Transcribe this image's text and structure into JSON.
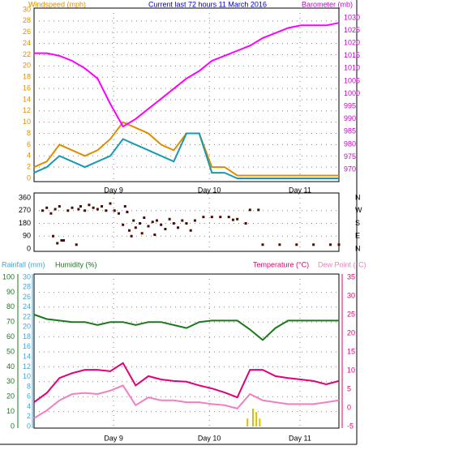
{
  "chart_data": [
    {
      "type": "line",
      "title": "Current last 72 hours 11 March 2016",
      "ylabel": "Windspeed (mph)",
      "y2label": "Barometer (mb)",
      "x": [
        0,
        3,
        6,
        9,
        12,
        15,
        18,
        21,
        24,
        27,
        30,
        33,
        36,
        39,
        42,
        45,
        48,
        51,
        54,
        57,
        60,
        63,
        66,
        69,
        72
      ],
      "xlim": [
        0,
        72
      ],
      "xticks": [
        {
          "value": 18.8,
          "label": "Day 9"
        },
        {
          "value": 41.4,
          "label": "Day 10"
        },
        {
          "value": 62.8,
          "label": "Day 11"
        }
      ],
      "ylim": [
        0,
        30
      ],
      "yticks": [
        0,
        2,
        4,
        6,
        8,
        10,
        12,
        14,
        16,
        18,
        20,
        22,
        24,
        26,
        28,
        30
      ],
      "y2lim": [
        966.5,
        1033.2
      ],
      "y2ticks": [
        970,
        975,
        980,
        985,
        990,
        995,
        1000,
        1005,
        1010,
        1015,
        1020,
        1025,
        1030
      ],
      "grid": true,
      "series": [
        {
          "color": "#e08c00",
          "values": [
            2,
            3,
            6,
            5,
            4,
            5,
            7,
            10,
            9,
            8,
            6,
            5,
            8,
            8,
            2,
            2,
            0.5,
            0.5,
            0.5,
            0.5,
            0.5,
            0.5,
            0.5,
            0.5,
            0.5
          ]
        },
        {
          "color": "#1a9ab0",
          "values": [
            1,
            2,
            4,
            3,
            2,
            3,
            4,
            7,
            6,
            5,
            4,
            3,
            8,
            8,
            1,
            1,
            0,
            0,
            0,
            0,
            0,
            0,
            0,
            0,
            0
          ]
        },
        {
          "color": "#ff00ff",
          "axis": "y2",
          "values": [
            1016,
            1016,
            1015,
            1013,
            1010,
            1006,
            996,
            987,
            990,
            994,
            998,
            1002,
            1006,
            1009,
            1013,
            1015,
            1017,
            1019,
            1022,
            1024,
            1026,
            1027,
            1027,
            1027,
            1028
          ]
        }
      ]
    },
    {
      "type": "scatter",
      "x": [
        2,
        3,
        4,
        4.5,
        5,
        5.5,
        6,
        6.5,
        7,
        8,
        9,
        10,
        10.5,
        11,
        12,
        13,
        14,
        15,
        16,
        17,
        18,
        19,
        20,
        21,
        21.5,
        22,
        22.5,
        23,
        23.5,
        24,
        25,
        25.5,
        26,
        27,
        28,
        28.5,
        29,
        30,
        31,
        32,
        33,
        34,
        35,
        36,
        37,
        38,
        40,
        42,
        44,
        46,
        47,
        48,
        50,
        51,
        53,
        54,
        58,
        62,
        66,
        70,
        72
      ],
      "values": [
        270,
        290,
        250,
        90,
        280,
        40,
        300,
        60,
        60,
        270,
        290,
        30,
        280,
        300,
        270,
        310,
        290,
        280,
        300,
        270,
        320,
        270,
        250,
        170,
        300,
        260,
        130,
        90,
        200,
        150,
        180,
        110,
        220,
        160,
        190,
        100,
        200,
        170,
        140,
        210,
        180,
        150,
        200,
        180,
        130,
        200,
        225,
        225,
        225,
        225,
        205,
        210,
        180,
        275,
        275,
        30,
        30,
        30,
        30,
        30,
        30
      ],
      "color": "#4a0d00",
      "xlim": [
        0,
        72
      ],
      "ylim": [
        0,
        360
      ],
      "yticks": [
        0,
        90,
        180,
        270,
        360
      ],
      "compass": [
        "N",
        "W",
        "S",
        "E",
        "N"
      ],
      "grid": true
    },
    {
      "type": "line",
      "ylabel": "Humidity (%)",
      "rainlabel": "Rainfall (mm)",
      "y2label": "Temperature (°C)",
      "dewlabel": "Dew Point (°C)",
      "x": [
        0,
        3,
        6,
        9,
        12,
        15,
        18,
        21,
        24,
        27,
        30,
        33,
        36,
        39,
        42,
        45,
        48,
        51,
        54,
        57,
        60,
        63,
        66,
        69,
        72
      ],
      "xlim": [
        0,
        72
      ],
      "xticks": [
        {
          "value": 18.8,
          "label": "Day 9"
        },
        {
          "value": 41.4,
          "label": "Day 10"
        },
        {
          "value": 62.8,
          "label": "Day 11"
        }
      ],
      "ylim": [
        0,
        100
      ],
      "yticks": [
        0,
        10,
        20,
        30,
        40,
        50,
        60,
        70,
        80,
        90,
        100
      ],
      "rainlim": [
        0,
        30
      ],
      "rainticks": [
        0,
        2,
        4,
        6,
        8,
        10,
        12,
        14,
        16,
        18,
        20,
        22,
        24,
        26,
        28,
        30
      ],
      "y2lim": [
        -5,
        35
      ],
      "y2ticks": [
        -5,
        0,
        5,
        10,
        15,
        20,
        25,
        30,
        35
      ],
      "grid": true,
      "series": [
        {
          "color": "#1a7a1a",
          "values": [
            75,
            72,
            71,
            70,
            70,
            68,
            70,
            70,
            68,
            70,
            70,
            68,
            66,
            70,
            71,
            71,
            71,
            65,
            58,
            66,
            71,
            71,
            71,
            71,
            71
          ]
        },
        {
          "color": "#f080c0",
          "axis": "y2",
          "values": [
            -2.8,
            -0.7,
            2,
            3.7,
            4,
            3.7,
            4.6,
            6,
            0.7,
            2.8,
            2,
            2,
            1.5,
            1.5,
            1,
            0.7,
            -0.2,
            3.7,
            2,
            1.5,
            1,
            1,
            1,
            1.5,
            2
          ]
        },
        {
          "color": "#e0007a",
          "axis": "y2",
          "values": [
            1.5,
            4,
            8,
            9.3,
            10.2,
            10.2,
            9.8,
            12,
            6,
            8.5,
            7.6,
            7.2,
            7,
            6,
            5.2,
            4.1,
            2.8,
            10.2,
            10.2,
            8.5,
            8,
            7.6,
            7.2,
            6.3,
            7.2
          ]
        },
        {
          "type": "bar",
          "color": "#d8c000",
          "axis": "rain",
          "x": [
            50.4,
            51.7,
            52.5,
            53.3
          ],
          "values": [
            1.6,
            3.6,
            2.9,
            1.6
          ]
        }
      ]
    }
  ]
}
